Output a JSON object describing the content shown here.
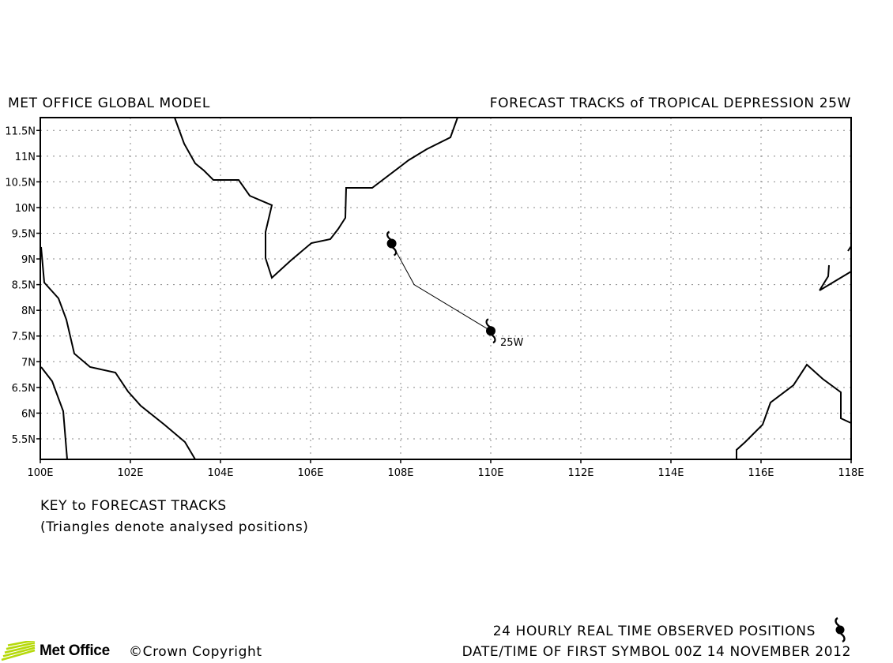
{
  "header": {
    "left_title": "MET OFFICE GLOBAL MODEL",
    "right_title": "FORECAST TRACKS of TROPICAL DEPRESSION 25W"
  },
  "map": {
    "lon_range": [
      100,
      118
    ],
    "lat_range": [
      5.1,
      11.75
    ],
    "lon_ticks": [
      "100E",
      "102E",
      "104E",
      "106E",
      "108E",
      "110E",
      "112E",
      "114E",
      "116E",
      "118E"
    ],
    "lat_ticks": [
      "5.5N",
      "6N",
      "6.5N",
      "7N",
      "7.5N",
      "8N",
      "8.5N",
      "9N",
      "9.5N",
      "10N",
      "10.5N",
      "11N",
      "11.5N"
    ],
    "grid": "dotted"
  },
  "track": {
    "storm_label": "25W",
    "points": [
      {
        "lon": 110.0,
        "lat": 7.6
      },
      {
        "lon": 108.3,
        "lat": 8.5
      },
      {
        "lon": 107.8,
        "lat": 9.3
      }
    ]
  },
  "key": {
    "title": "KEY to FORECAST TRACKS",
    "subtitle": "(Triangles denote analysed positions)"
  },
  "footer": {
    "observed_line": "24 HOURLY REAL TIME OBSERVED POSITIONS",
    "datetime_line": "DATE/TIME OF FIRST SYMBOL 00Z 14 NOVEMBER 2012",
    "brand": "Met Office",
    "copyright": "©Crown Copyright",
    "brand_color": "#b6d90b"
  }
}
